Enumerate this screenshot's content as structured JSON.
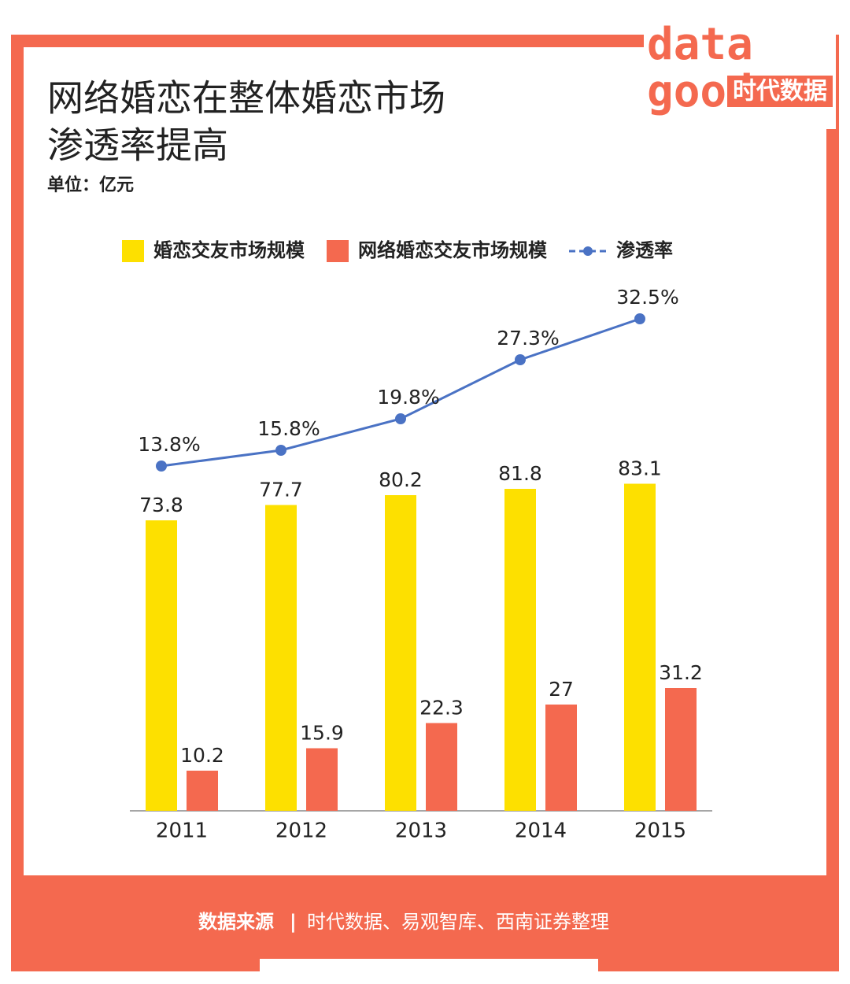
{
  "chart_data": {
    "type": "bar_line",
    "title": [
      "网络婚恋在整体婚恋市场",
      "渗透率提高"
    ],
    "subtitle": "单位：亿元",
    "logo": {
      "mark": [
        "data",
        "good"
      ],
      "text": "时代数据"
    },
    "categories": [
      "2011",
      "2012",
      "2013",
      "2014",
      "2015"
    ],
    "series": [
      {
        "name": "婚恋交友市场规模",
        "color": "#fde000",
        "type": "bar",
        "values": [
          73.8,
          77.7,
          80.2,
          81.8,
          83.1
        ]
      },
      {
        "name": "网络婚恋交友市场规模",
        "color": "#f4694f",
        "type": "bar",
        "values": [
          10.2,
          15.9,
          22.3,
          27,
          31.2
        ]
      },
      {
        "name": "渗透率",
        "color": "#4a72c4",
        "type": "line",
        "axis": "y2",
        "values": [
          13.8,
          15.8,
          19.8,
          27.3,
          32.5
        ],
        "value_labels": [
          "13.8%",
          "15.8%",
          "19.8%",
          "27.3%",
          "32.5%"
        ]
      }
    ],
    "ylim": [
      0,
      150
    ],
    "y2lim": [
      -30,
      45
    ],
    "source": {
      "label": "数据来源",
      "separator": "|",
      "text": "时代数据、易观智库、西南证券整理"
    }
  }
}
